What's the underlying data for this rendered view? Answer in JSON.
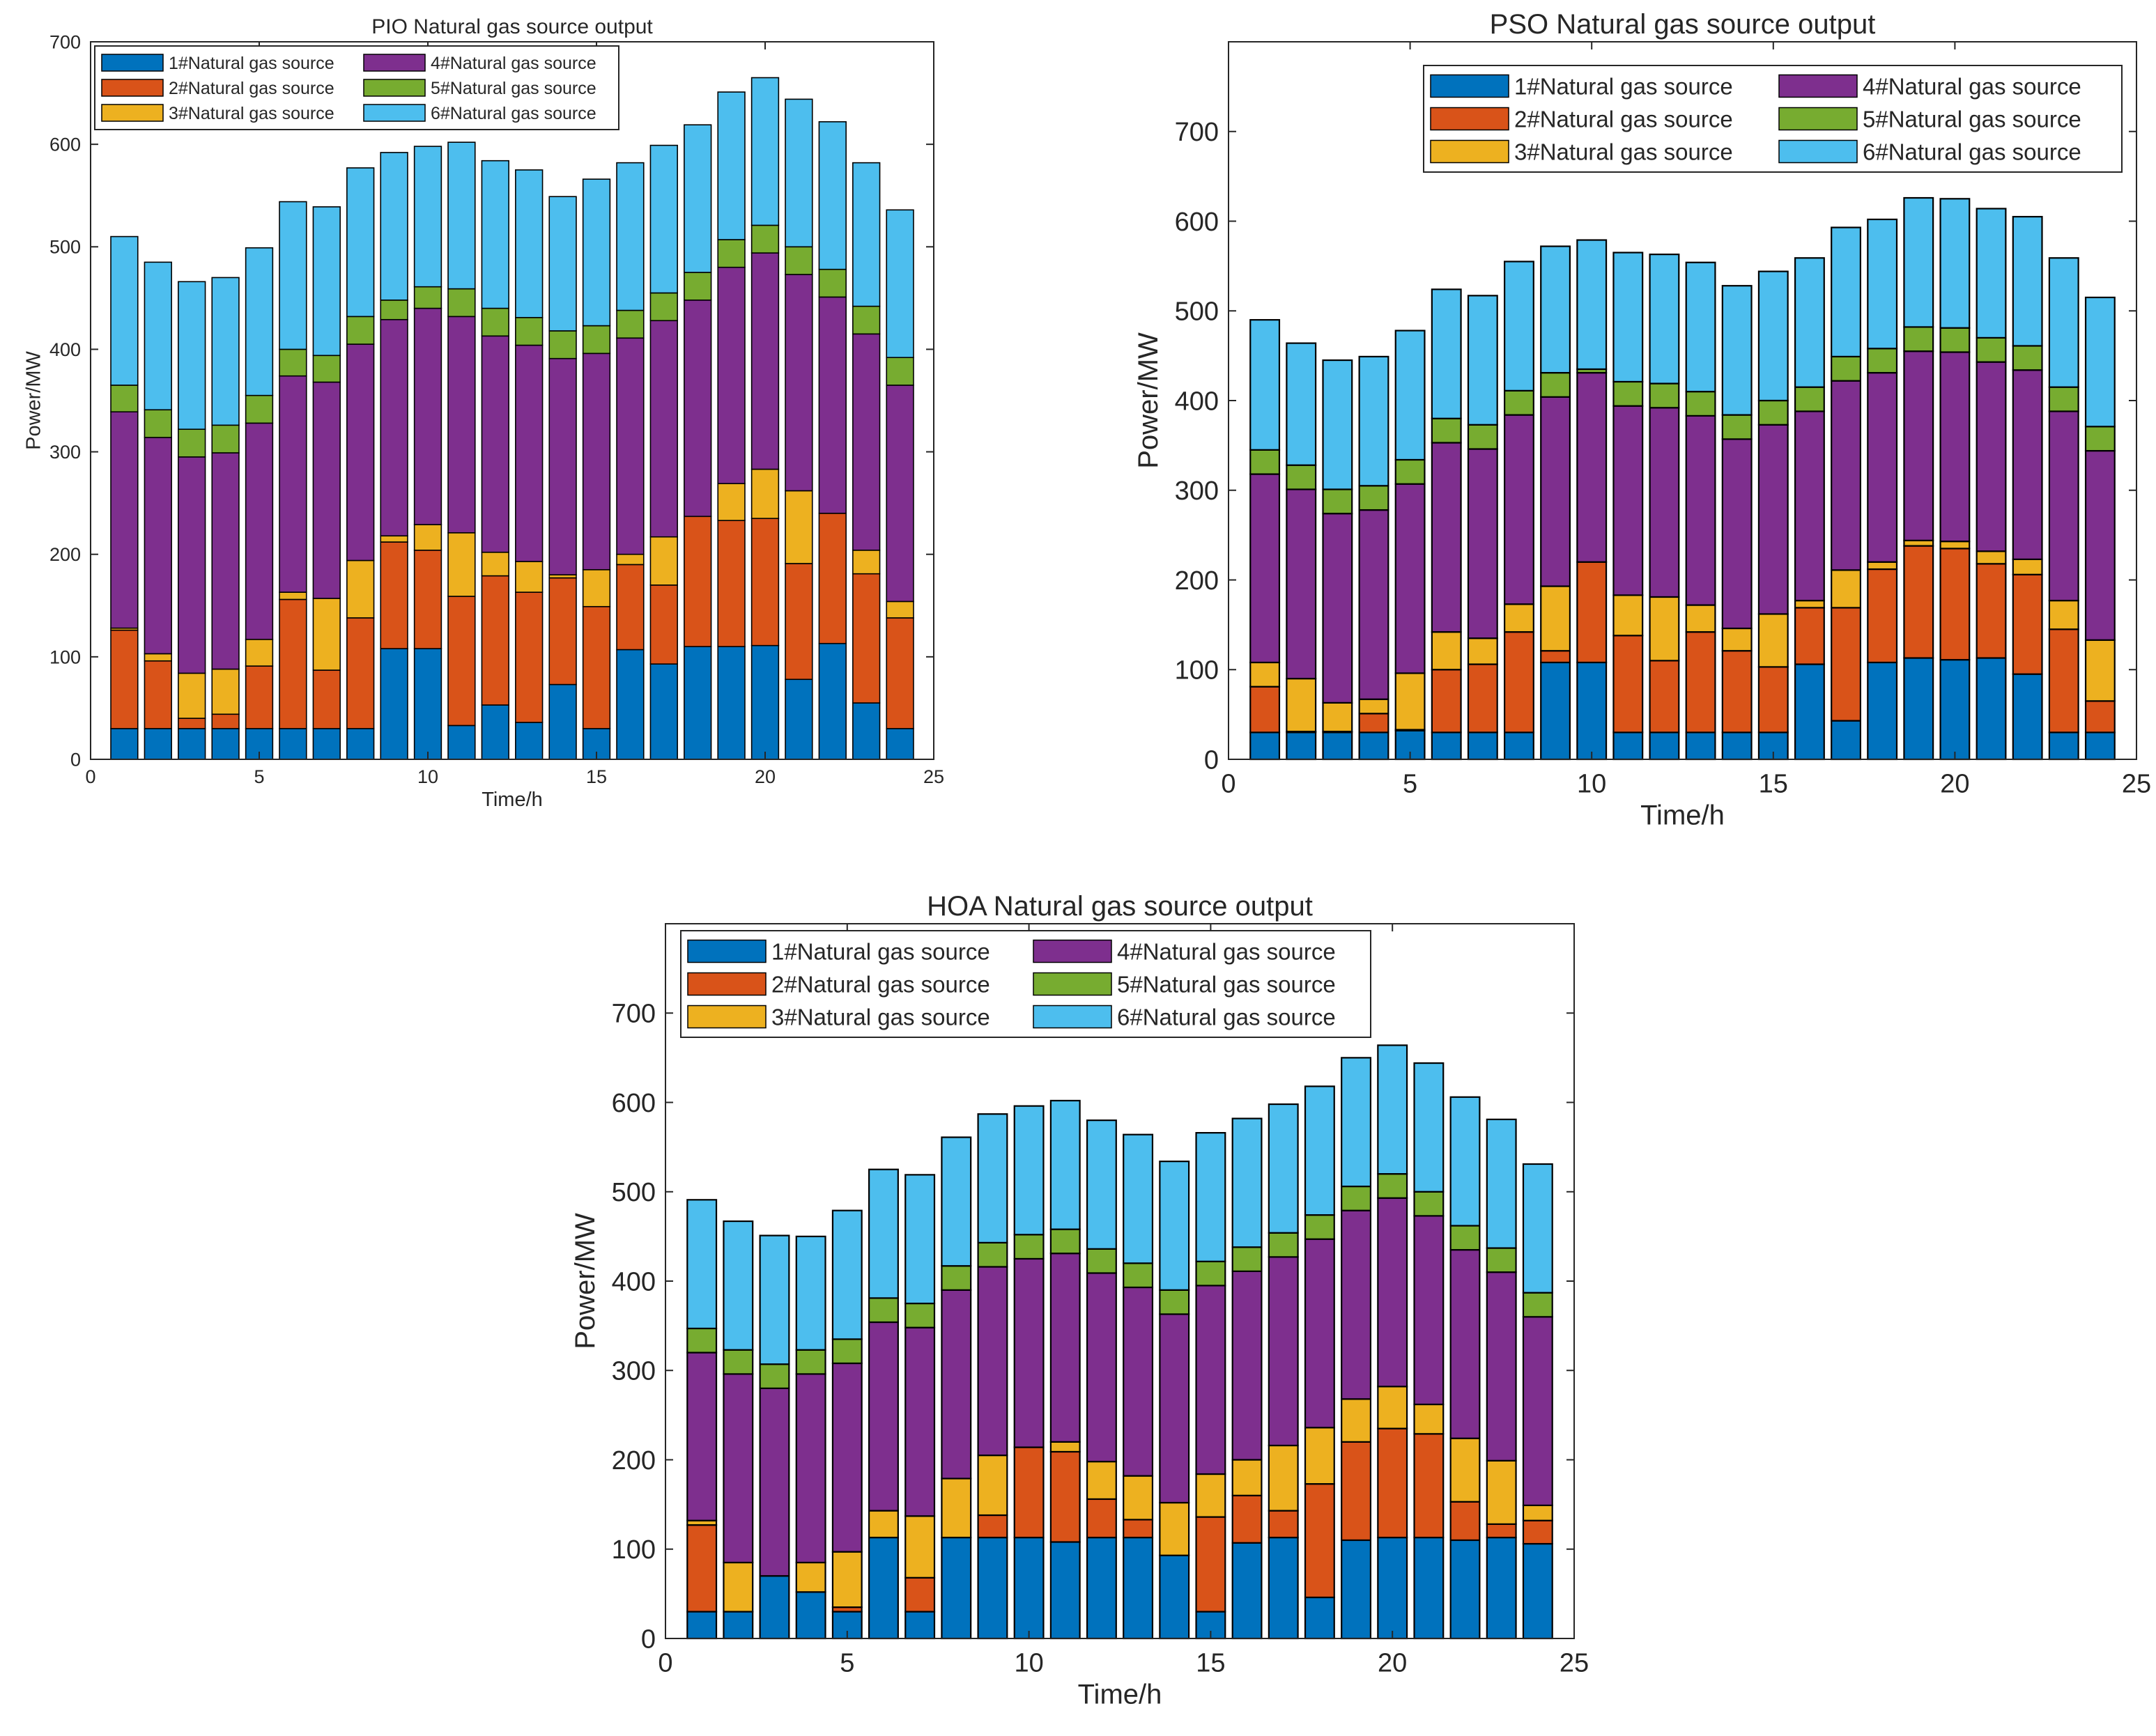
{
  "figure": {
    "description_free": true
  },
  "series_names": [
    "1#Natural gas source",
    "2#Natural gas source",
    "3#Natural gas source",
    "4#Natural gas source",
    "5#Natural gas source",
    "6#Natural gas source"
  ],
  "series_colors": [
    "#0072BD",
    "#D95319",
    "#EDB120",
    "#7E2F8E",
    "#77AC30",
    "#4DBEEE"
  ],
  "chart_data": [
    {
      "type": "bar",
      "stacked": true,
      "title": "PIO Natural gas source output",
      "xlabel": "Time/h",
      "ylabel": "Power/MW",
      "xlim": [
        0,
        25
      ],
      "ylim": [
        0,
        700
      ],
      "xticks": [
        0,
        5,
        10,
        15,
        20,
        25
      ],
      "yticks": [
        0,
        100,
        200,
        300,
        400,
        500,
        600,
        700
      ],
      "legend_position": "top-left",
      "categories": [
        1,
        2,
        3,
        4,
        5,
        6,
        7,
        8,
        9,
        10,
        11,
        12,
        13,
        14,
        15,
        16,
        17,
        18,
        19,
        20,
        21,
        22,
        23,
        24
      ],
      "series": [
        {
          "name": "1#Natural gas source",
          "values": [
            30,
            30,
            30,
            30,
            30,
            30,
            30,
            30,
            108,
            108,
            33,
            53,
            36,
            73,
            30,
            107,
            93,
            110,
            110,
            111,
            78,
            113,
            55,
            30
          ]
        },
        {
          "name": "2#Natural gas source",
          "values": [
            96,
            66,
            10,
            14,
            61,
            126,
            57,
            108,
            104,
            96,
            126,
            126,
            127,
            104,
            119,
            83,
            77,
            127,
            123,
            124,
            113,
            127,
            126,
            108
          ]
        },
        {
          "name": "3#Natural gas source",
          "values": [
            2,
            7,
            44,
            44,
            26,
            7,
            70,
            56,
            6,
            25,
            62,
            23,
            30,
            3,
            36,
            10,
            47,
            0,
            36,
            48,
            71,
            0,
            23,
            16
          ]
        },
        {
          "name": "4#Natural gas source",
          "values": [
            211,
            211,
            211,
            211,
            211,
            211,
            211,
            211,
            211,
            211,
            211,
            211,
            211,
            211,
            211,
            211,
            211,
            211,
            211,
            211,
            211,
            211,
            211,
            211
          ]
        },
        {
          "name": "5#Natural gas source",
          "values": [
            26,
            27,
            27,
            27,
            27,
            26,
            26,
            27,
            19,
            21,
            27,
            27,
            27,
            27,
            27,
            27,
            27,
            27,
            27,
            27,
            27,
            27,
            27,
            27
          ]
        },
        {
          "name": "6#Natural gas source",
          "values": [
            145,
            144,
            144,
            144,
            144,
            144,
            145,
            145,
            144,
            137,
            143,
            144,
            144,
            131,
            143,
            144,
            144,
            144,
            144,
            144,
            144,
            144,
            140,
            144
          ]
        }
      ]
    },
    {
      "type": "bar",
      "stacked": true,
      "title": "PSO Natural gas source output",
      "xlabel": "Time/h",
      "ylabel": "Power/MW",
      "xlim": [
        0,
        25
      ],
      "ylim": [
        0,
        800
      ],
      "xticks": [
        0,
        5,
        10,
        15,
        20,
        25
      ],
      "yticks": [
        0,
        100,
        200,
        300,
        400,
        500,
        600,
        700
      ],
      "legend_position": "top-right",
      "categories": [
        1,
        2,
        3,
        4,
        5,
        6,
        7,
        8,
        9,
        10,
        11,
        12,
        13,
        14,
        15,
        16,
        17,
        18,
        19,
        20,
        21,
        22,
        23,
        24
      ],
      "series": [
        {
          "name": "1#Natural gas source",
          "values": [
            30,
            30,
            30,
            30,
            32,
            30,
            30,
            30,
            108,
            108,
            30,
            30,
            30,
            30,
            30,
            106,
            43,
            108,
            113,
            111,
            113,
            95,
            30,
            30
          ]
        },
        {
          "name": "2#Natural gas source",
          "values": [
            51,
            1,
            1,
            21,
            1,
            70,
            76,
            112,
            13,
            112,
            108,
            80,
            112,
            91,
            73,
            63,
            126,
            104,
            125,
            124,
            105,
            111,
            115,
            35
          ]
        },
        {
          "name": "3#Natural gas source",
          "values": [
            27,
            59,
            32,
            16,
            63,
            42,
            29,
            31,
            72,
            0,
            45,
            71,
            30,
            25,
            59,
            8,
            42,
            8,
            6,
            8,
            14,
            17,
            32,
            68
          ]
        },
        {
          "name": "4#Natural gas source",
          "values": [
            210,
            211,
            211,
            211,
            211,
            211,
            211,
            211,
            211,
            211,
            211,
            211,
            211,
            211,
            211,
            211,
            211,
            211,
            211,
            211,
            211,
            211,
            211,
            211
          ]
        },
        {
          "name": "5#Natural gas source",
          "values": [
            27,
            27,
            27,
            27,
            27,
            27,
            27,
            27,
            27,
            4,
            27,
            27,
            27,
            27,
            27,
            27,
            27,
            27,
            27,
            27,
            27,
            27,
            27,
            27
          ]
        },
        {
          "name": "6#Natural gas source",
          "values": [
            145,
            136,
            144,
            144,
            144,
            144,
            144,
            144,
            141,
            144,
            144,
            144,
            144,
            144,
            144,
            144,
            144,
            144,
            144,
            144,
            144,
            144,
            144,
            144
          ]
        }
      ]
    },
    {
      "type": "bar",
      "stacked": true,
      "title": "HOA Natural gas source output",
      "xlabel": "Time/h",
      "ylabel": "Power/MW",
      "xlim": [
        0,
        25
      ],
      "ylim": [
        0,
        800
      ],
      "xticks": [
        0,
        5,
        10,
        15,
        20,
        25
      ],
      "yticks": [
        0,
        100,
        200,
        300,
        400,
        500,
        600,
        700
      ],
      "legend_position": "top-left",
      "categories": [
        1,
        2,
        3,
        4,
        5,
        6,
        7,
        8,
        9,
        10,
        11,
        12,
        13,
        14,
        15,
        16,
        17,
        18,
        19,
        20,
        21,
        22,
        23,
        24
      ],
      "series": [
        {
          "name": "1#Natural gas source",
          "values": [
            30,
            30,
            70,
            52,
            30,
            113,
            30,
            113,
            113,
            113,
            108,
            113,
            113,
            93,
            30,
            107,
            113,
            46,
            110,
            113,
            113,
            110,
            113,
            106
          ]
        },
        {
          "name": "2#Natural gas source",
          "values": [
            97,
            0,
            0,
            0,
            5,
            0,
            38,
            0,
            25,
            101,
            101,
            43,
            20,
            0,
            106,
            53,
            30,
            127,
            110,
            122,
            116,
            43,
            15,
            26
          ]
        },
        {
          "name": "3#Natural gas source",
          "values": [
            5,
            55,
            0,
            33,
            62,
            30,
            69,
            66,
            67,
            0,
            11,
            42,
            49,
            59,
            48,
            40,
            73,
            63,
            48,
            47,
            33,
            71,
            71,
            17
          ]
        },
        {
          "name": "4#Natural gas source",
          "values": [
            188,
            211,
            210,
            211,
            211,
            211,
            211,
            211,
            211,
            211,
            211,
            211,
            211,
            211,
            211,
            211,
            211,
            211,
            211,
            211,
            211,
            211,
            211,
            211
          ]
        },
        {
          "name": "5#Natural gas source",
          "values": [
            27,
            27,
            27,
            27,
            27,
            27,
            27,
            27,
            27,
            27,
            27,
            27,
            27,
            27,
            27,
            27,
            27,
            27,
            27,
            27,
            27,
            27,
            27,
            27
          ]
        },
        {
          "name": "6#Natural gas source",
          "values": [
            144,
            144,
            144,
            127,
            144,
            144,
            144,
            144,
            144,
            144,
            144,
            144,
            144,
            144,
            144,
            144,
            144,
            144,
            144,
            144,
            144,
            144,
            144,
            144
          ]
        }
      ]
    }
  ]
}
